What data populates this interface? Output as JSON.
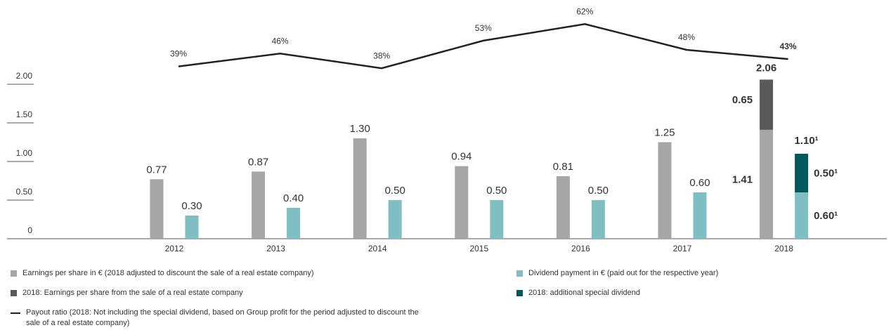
{
  "chart_data": {
    "type": "bar",
    "categories": [
      "2012",
      "2013",
      "2014",
      "2015",
      "2016",
      "2017",
      "2018"
    ],
    "series": [
      {
        "name": "Earnings per share in € (2018 adjusted to discount the sale of a real estate company)",
        "color": "#a6a6a6",
        "values": [
          0.77,
          0.87,
          1.3,
          0.94,
          0.81,
          1.25,
          1.41
        ],
        "value_labels": [
          "0.77",
          "0.87",
          "1.30",
          "0.94",
          "0.81",
          "1.25",
          "1.41"
        ]
      },
      {
        "name": "2018: Earnings per share from the sale of a real estate company",
        "color": "#595959",
        "stack_on": 0,
        "values": [
          null,
          null,
          null,
          null,
          null,
          null,
          0.65
        ]
      },
      {
        "name": "Dividend payment in € (paid out for the respective year)",
        "color": "#7fbfc4",
        "values": [
          0.3,
          0.4,
          0.5,
          0.5,
          0.5,
          0.6,
          0.6
        ],
        "value_labels": [
          "0.30",
          "0.40",
          "0.50",
          "0.50",
          "0.50",
          "0.60",
          "0.60¹"
        ]
      },
      {
        "name": "2018: additional special dividend",
        "color": "#00595e",
        "stack_on": 2,
        "values": [
          null,
          null,
          null,
          null,
          null,
          null,
          0.5
        ],
        "value_labels": [
          null,
          null,
          null,
          null,
          null,
          null,
          "0.50¹"
        ]
      },
      {
        "name": "Payout ratio (2018: Not including the special dividend, based on Group profit for the period adjusted to discount the sale of a real estate company)",
        "type": "line",
        "color": "#222222",
        "values": [
          39,
          46,
          38,
          53,
          62,
          48,
          43
        ],
        "value_labels": [
          "39%",
          "46%",
          "38%",
          "53%",
          "62%",
          "48%",
          "43%"
        ]
      }
    ],
    "annotations": [
      "2.06",
      "1.10¹"
    ],
    "ylim": [
      0,
      2
    ],
    "yticks": [
      0,
      {
        "value": 0.5,
        "label": "0.50"
      },
      {
        "value": 1,
        "label": "1.00"
      },
      {
        "value": 1.5,
        "label": "1.50"
      },
      {
        "value": 2,
        "label": "2.00"
      }
    ]
  }
}
